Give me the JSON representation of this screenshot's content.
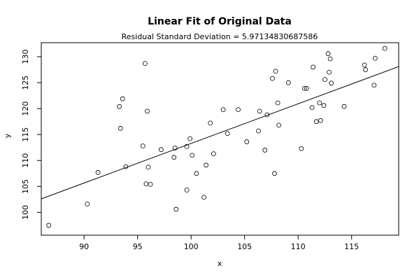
{
  "chart_data": {
    "type": "scatter",
    "title": "Linear Fit of Original Data",
    "subtitle": "Residual Standard Deviation =  5.97134830687586",
    "xlabel": "x",
    "ylabel": "y",
    "xlim": [
      86,
      119.4
    ],
    "ylim": [
      95.6,
      132.7
    ],
    "xticks": [
      90,
      95,
      100,
      105,
      110,
      115
    ],
    "yticks": [
      100,
      105,
      110,
      115,
      120,
      125,
      130
    ],
    "fit_line": {
      "x": [
        86,
        119.4
      ],
      "y": [
        102.6,
        128.1
      ]
    },
    "points": [
      [
        86.7,
        97.5
      ],
      [
        90.3,
        101.6
      ],
      [
        91.3,
        107.7
      ],
      [
        93.3,
        120.4
      ],
      [
        93.4,
        116.2
      ],
      [
        93.6,
        121.9
      ],
      [
        93.9,
        108.8
      ],
      [
        95.5,
        112.8
      ],
      [
        95.7,
        128.7
      ],
      [
        95.8,
        105.5
      ],
      [
        95.9,
        119.5
      ],
      [
        96.0,
        108.7
      ],
      [
        96.2,
        105.4
      ],
      [
        97.2,
        112.1
      ],
      [
        98.4,
        110.6
      ],
      [
        98.5,
        112.4
      ],
      [
        98.6,
        100.6
      ],
      [
        99.6,
        104.3
      ],
      [
        99.6,
        112.7
      ],
      [
        99.9,
        114.2
      ],
      [
        100.1,
        111.0
      ],
      [
        100.5,
        107.5
      ],
      [
        101.2,
        102.9
      ],
      [
        101.4,
        109.1
      ],
      [
        101.8,
        117.2
      ],
      [
        102.1,
        111.3
      ],
      [
        103.0,
        119.8
      ],
      [
        103.4,
        115.2
      ],
      [
        104.4,
        119.8
      ],
      [
        105.2,
        113.6
      ],
      [
        106.3,
        115.7
      ],
      [
        106.4,
        119.5
      ],
      [
        106.9,
        112.0
      ],
      [
        107.1,
        118.8
      ],
      [
        107.6,
        125.8
      ],
      [
        107.8,
        107.5
      ],
      [
        107.9,
        127.2
      ],
      [
        108.1,
        121.1
      ],
      [
        108.2,
        116.8
      ],
      [
        109.1,
        125.0
      ],
      [
        110.3,
        112.3
      ],
      [
        110.6,
        123.9
      ],
      [
        110.8,
        123.9
      ],
      [
        111.3,
        120.2
      ],
      [
        111.4,
        128.0
      ],
      [
        111.7,
        117.5
      ],
      [
        112.0,
        121.1
      ],
      [
        112.1,
        117.7
      ],
      [
        112.4,
        120.6
      ],
      [
        112.5,
        125.6
      ],
      [
        112.8,
        130.6
      ],
      [
        112.9,
        127.0
      ],
      [
        113.0,
        129.6
      ],
      [
        113.1,
        124.9
      ],
      [
        114.3,
        120.4
      ],
      [
        116.2,
        128.4
      ],
      [
        116.3,
        127.5
      ],
      [
        117.1,
        124.5
      ],
      [
        117.2,
        129.7
      ],
      [
        118.1,
        131.6
      ]
    ]
  }
}
